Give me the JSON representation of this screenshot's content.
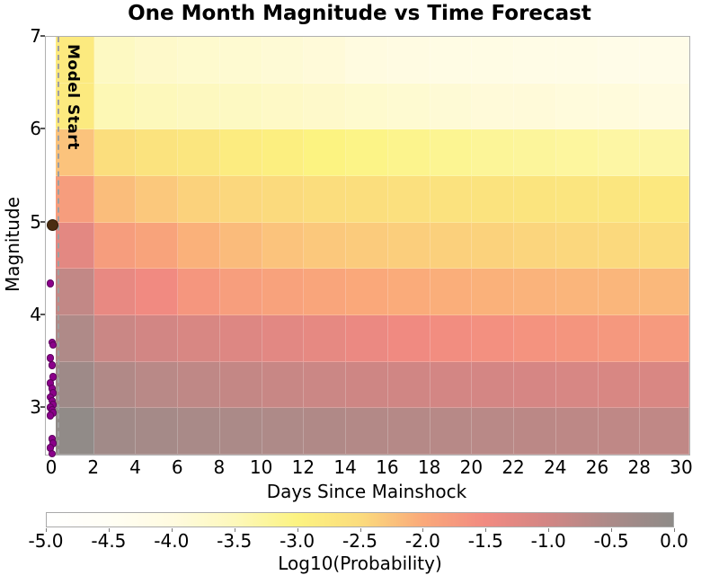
{
  "title": "One Month Magnitude vs Time Forecast",
  "axes": {
    "x_label": "Days Since Mainshock",
    "y_label": "Magnitude",
    "x_ticks": [
      0,
      2,
      4,
      6,
      8,
      10,
      12,
      14,
      16,
      18,
      20,
      22,
      24,
      26,
      28,
      30
    ],
    "y_ticks": [
      7,
      6,
      5,
      4,
      3
    ]
  },
  "annotations": {
    "model_start_label": "Model Start",
    "model_start_day": 0.26,
    "model_start_line_color": "#9f9f9f"
  },
  "colorbar": {
    "label": "Log10(Probability)",
    "tick_labels": [
      "-5.0",
      "-4.5",
      "-4.0",
      "-3.5",
      "-3.0",
      "-2.5",
      "-2.0",
      "-1.5",
      "-1.0",
      "-0.5",
      "0.0"
    ],
    "min": -5.0,
    "max": 0.0
  },
  "chart_data": {
    "type": "heatmap",
    "title": "One Month Magnitude vs Time Forecast",
    "xlabel": "Days Since Mainshock",
    "ylabel": "Magnitude",
    "xlim": [
      -0.3,
      30.4
    ],
    "ylim": [
      2.5,
      7.0
    ],
    "value_label": "Log10(Probability)",
    "value_range": [
      -5.0,
      0.0
    ],
    "colormap_stops": [
      {
        "value": -5.0,
        "color": "#ffffff"
      },
      {
        "value": -4.5,
        "color": "#fffef4"
      },
      {
        "value": -4.0,
        "color": "#fffbe0"
      },
      {
        "value": -3.5,
        "color": "#fdf8bb"
      },
      {
        "value": -3.0,
        "color": "#fcf381"
      },
      {
        "value": -2.5,
        "color": "#fbdc7d"
      },
      {
        "value": -2.0,
        "color": "#faa97a"
      },
      {
        "value": -1.5,
        "color": "#f18a81"
      },
      {
        "value": -1.0,
        "color": "#d28684"
      },
      {
        "value": -0.5,
        "color": "#ab8a88"
      },
      {
        "value": 0.0,
        "color": "#8e8b88"
      }
    ],
    "day_bin_edges": [
      0.17,
      2,
      4,
      6,
      8,
      10,
      12,
      14,
      16,
      18,
      20,
      22,
      24,
      26,
      28,
      30.4
    ],
    "magnitude_bin_edges": [
      7.0,
      6.5,
      6.0,
      5.5,
      5.0,
      4.5,
      4.0,
      3.5,
      3.0,
      2.5
    ],
    "log10_probability": [
      [
        -2.8,
        -3.6,
        -3.7,
        -3.75,
        -3.8,
        -3.85,
        -3.9,
        -4.0,
        -4.05,
        -4.1,
        -4.1,
        -4.15,
        -4.15,
        -4.2,
        -4.2
      ],
      [
        -2.8,
        -3.45,
        -3.5,
        -3.55,
        -3.6,
        -3.65,
        -3.7,
        -3.75,
        -3.8,
        -3.85,
        -3.9,
        -3.9,
        -3.95,
        -3.95,
        -4.0
      ],
      [
        -2.25,
        -2.55,
        -2.65,
        -2.72,
        -2.85,
        -2.92,
        -3.0,
        -3.05,
        -3.1,
        -3.15,
        -3.2,
        -3.22,
        -3.25,
        -3.3,
        -3.32
      ],
      [
        -1.8,
        -2.2,
        -2.3,
        -2.4,
        -2.45,
        -2.48,
        -2.52,
        -2.55,
        -2.58,
        -2.62,
        -2.65,
        -2.68,
        -2.7,
        -2.72,
        -2.75
      ],
      [
        -1.28,
        -1.8,
        -1.9,
        -2.08,
        -2.18,
        -2.25,
        -2.3,
        -2.33,
        -2.36,
        -2.38,
        -2.4,
        -2.43,
        -2.45,
        -2.47,
        -2.5
      ],
      [
        -0.8,
        -1.35,
        -1.5,
        -1.7,
        -1.82,
        -1.88,
        -1.93,
        -1.98,
        -2.02,
        -2.05,
        -2.08,
        -2.1,
        -2.12,
        -2.13,
        -2.15
      ],
      [
        -0.55,
        -0.9,
        -1.0,
        -1.1,
        -1.18,
        -1.25,
        -1.33,
        -1.4,
        -1.48,
        -1.55,
        -1.6,
        -1.65,
        -1.68,
        -1.72,
        -1.75
      ],
      [
        -0.28,
        -0.58,
        -0.68,
        -0.76,
        -0.82,
        -0.87,
        -0.91,
        -0.95,
        -0.98,
        -1.01,
        -1.04,
        -1.06,
        -1.08,
        -1.1,
        -1.12
      ],
      [
        -0.05,
        -0.32,
        -0.4,
        -0.46,
        -0.5,
        -0.54,
        -0.57,
        -0.6,
        -0.63,
        -0.66,
        -0.68,
        -0.71,
        -0.73,
        -0.75,
        -0.77
      ]
    ],
    "scatter": {
      "mainshock": {
        "day": 0,
        "magnitude": 5.0,
        "color": "#4a2d12",
        "edge_color": "#2e1b08"
      },
      "aftershock_color": "#8b008b",
      "aftershock_edge_color": "#5c005c",
      "aftershocks": [
        {
          "day": 0,
          "magnitude": 4.35
        },
        {
          "day": 0,
          "magnitude": 3.72
        },
        {
          "day": 0,
          "magnitude": 3.69
        },
        {
          "day": 0,
          "magnitude": 3.55
        },
        {
          "day": 0,
          "magnitude": 3.47
        },
        {
          "day": 0,
          "magnitude": 3.35
        },
        {
          "day": 0,
          "magnitude": 3.28
        },
        {
          "day": 0,
          "magnitude": 3.22
        },
        {
          "day": 0,
          "magnitude": 3.17
        },
        {
          "day": 0,
          "magnitude": 3.13
        },
        {
          "day": 0,
          "magnitude": 3.09
        },
        {
          "day": 0,
          "magnitude": 3.05
        },
        {
          "day": 0,
          "magnitude": 3.02
        },
        {
          "day": 0,
          "magnitude": 2.99
        },
        {
          "day": 0,
          "magnitude": 2.96
        },
        {
          "day": 0,
          "magnitude": 2.93
        },
        {
          "day": 0,
          "magnitude": 2.68
        },
        {
          "day": 0,
          "magnitude": 2.63
        },
        {
          "day": 0,
          "magnitude": 2.58
        },
        {
          "day": 0,
          "magnitude": 2.52
        }
      ]
    }
  }
}
